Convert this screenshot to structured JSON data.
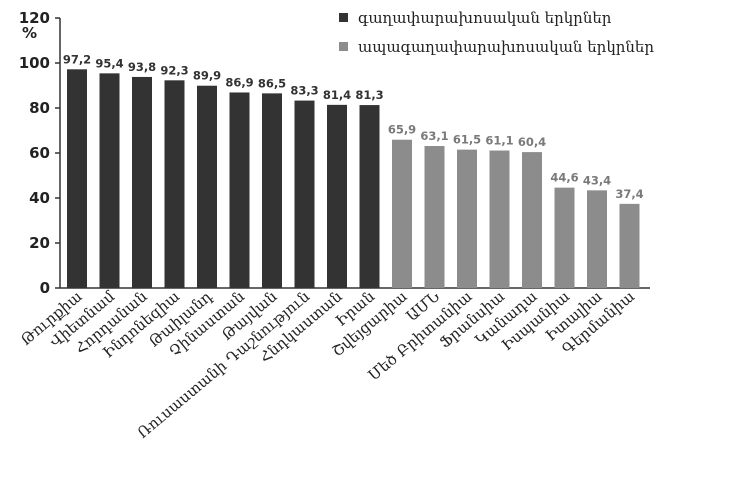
{
  "chart_data": {
    "type": "bar",
    "unit_label": "%",
    "ylim": [
      0,
      120
    ],
    "yticks": [
      0,
      20,
      40,
      60,
      80,
      100,
      120
    ],
    "grid": false,
    "legend_position": "top-right",
    "categories": [
      "Թուրքիա",
      "Վիետնամ",
      "Հորդանան",
      "Ինդոնեզիա",
      "Թաիլանդ",
      "Չինաստան",
      "Թայվան",
      "Ռուսաստանի Դաշնություն",
      "Հնդկաստան",
      "Իրան",
      "Շվեյցարիա",
      "ԱՄՆ",
      "Մեծ Բրիտանիա",
      "Ֆրանսիա",
      "Կանադա",
      "Իսպանիա",
      "Իտալիա",
      "Գերմանիա"
    ],
    "series": [
      {
        "name": "գաղափարախոսական երկրներ",
        "color": "#333333",
        "label_color": "#333333",
        "values": [
          97.2,
          95.4,
          93.8,
          92.3,
          89.9,
          86.9,
          86.5,
          83.3,
          81.4,
          81.3,
          null,
          null,
          null,
          null,
          null,
          null,
          null,
          null
        ],
        "labels": [
          "97,2",
          "95,4",
          "93,8",
          "92,3",
          "89,9",
          "86,9",
          "86,5",
          "83,3",
          "81,4",
          "81,3",
          "",
          "",
          "",
          "",
          "",
          "",
          "",
          ""
        ]
      },
      {
        "name": "ապագաղափարախոսական երկրներ",
        "color": "#8c8c8c",
        "label_color": "#7a7a7a",
        "values": [
          null,
          null,
          null,
          null,
          null,
          null,
          null,
          null,
          null,
          null,
          65.9,
          63.1,
          61.5,
          61.1,
          60.4,
          44.6,
          43.4,
          37.4
        ],
        "labels": [
          "",
          "",
          "",
          "",
          "",
          "",
          "",
          "",
          "",
          "",
          "65,9",
          "63,1",
          "61,5",
          "61,1",
          "60,4",
          "44,6",
          "43,4",
          "37,4"
        ]
      }
    ]
  }
}
